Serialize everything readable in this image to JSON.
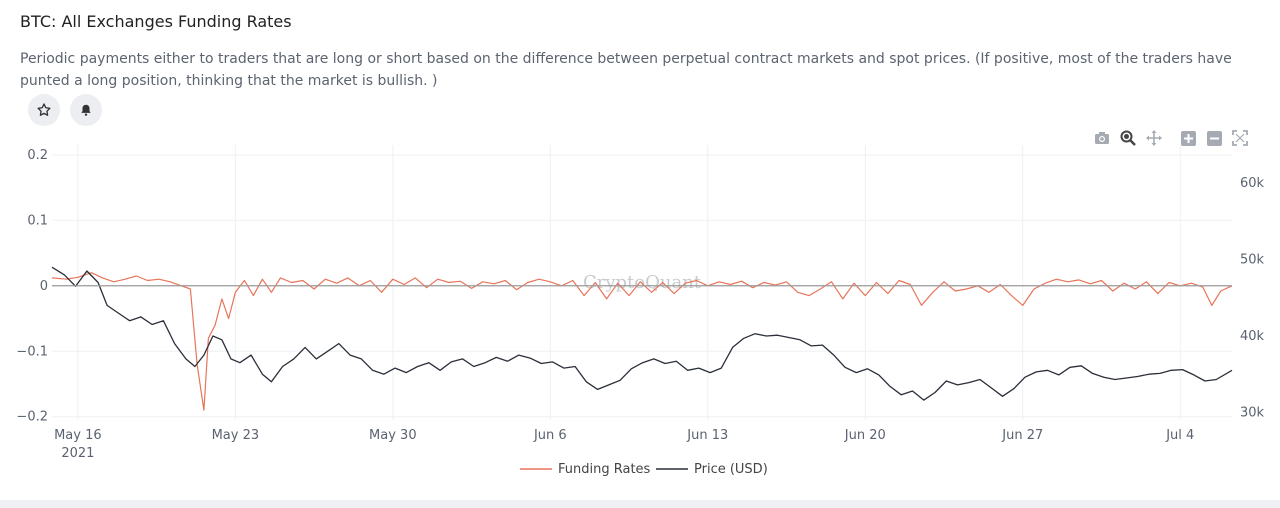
{
  "header": {
    "title": "BTC: All Exchanges Funding Rates",
    "description": "Periodic payments either to traders that are long or short based on the difference between perpetual contract markets and spot prices. (If positive, most of the traders have punted a long position, thinking that the market is bullish. )"
  },
  "actions": {
    "star_icon": "star-icon",
    "bell_icon": "bell-icon"
  },
  "modebar": [
    "camera-icon",
    "zoom-icon",
    "pan-icon",
    "zoom-in-icon",
    "zoom-out-icon",
    "autoscale-icon"
  ],
  "watermark": "CryptoQuant",
  "colors": {
    "funding": "#e8745a",
    "price": "#2b2f3a",
    "zero_line": "#9a9a9a",
    "grid": "#eef0f2"
  },
  "chart_data": {
    "type": "line",
    "title": "",
    "x_ticks": [
      {
        "day": 0,
        "label": "May 16",
        "sublabel": "2021"
      },
      {
        "day": 7,
        "label": "May 23"
      },
      {
        "day": 14,
        "label": "May 30"
      },
      {
        "day": 21,
        "label": "Jun 6"
      },
      {
        "day": 28,
        "label": "Jun 13"
      },
      {
        "day": 35,
        "label": "Jun 20"
      },
      {
        "day": 42,
        "label": "Jun 27"
      },
      {
        "day": 49,
        "label": "Jul 4"
      }
    ],
    "x_range_days": [
      -1.15,
      51.3
    ],
    "y_left": {
      "ticks": [
        0.2,
        0.1,
        0,
        -0.1,
        -0.2
      ],
      "tick_labels": [
        "0.2",
        "0.1",
        "0",
        "−0.1",
        "−0.2"
      ],
      "range": [
        -0.205,
        0.215
      ]
    },
    "y_right": {
      "ticks": [
        60000,
        50000,
        40000,
        30000
      ],
      "tick_labels": [
        "60k",
        "50k",
        "40k",
        "30k"
      ],
      "range": [
        29000,
        65000
      ]
    },
    "grid": true,
    "legend_position": "bottom-center",
    "series": [
      {
        "name": "Funding Rates",
        "axis": "left",
        "points": [
          [
            -1.15,
            0.012
          ],
          [
            -0.5,
            0.01
          ],
          [
            0,
            0.013
          ],
          [
            0.6,
            0.02
          ],
          [
            1.1,
            0.012
          ],
          [
            1.6,
            0.006
          ],
          [
            2.1,
            0.01
          ],
          [
            2.6,
            0.015
          ],
          [
            3.1,
            0.008
          ],
          [
            3.6,
            0.01
          ],
          [
            4.1,
            0.006
          ],
          [
            4.6,
            0.0
          ],
          [
            5.0,
            -0.005
          ],
          [
            5.3,
            -0.12
          ],
          [
            5.6,
            -0.19
          ],
          [
            5.8,
            -0.08
          ],
          [
            6.1,
            -0.06
          ],
          [
            6.4,
            -0.02
          ],
          [
            6.7,
            -0.05
          ],
          [
            7.0,
            -0.01
          ],
          [
            7.4,
            0.008
          ],
          [
            7.8,
            -0.015
          ],
          [
            8.2,
            0.01
          ],
          [
            8.6,
            -0.01
          ],
          [
            9.0,
            0.012
          ],
          [
            9.5,
            0.005
          ],
          [
            10.0,
            0.008
          ],
          [
            10.5,
            -0.005
          ],
          [
            11.0,
            0.01
          ],
          [
            11.5,
            0.004
          ],
          [
            12.0,
            0.012
          ],
          [
            12.5,
            0.0
          ],
          [
            13.0,
            0.008
          ],
          [
            13.5,
            -0.01
          ],
          [
            14.0,
            0.01
          ],
          [
            14.5,
            0.002
          ],
          [
            15.0,
            0.012
          ],
          [
            15.5,
            -0.003
          ],
          [
            16.0,
            0.01
          ],
          [
            16.5,
            0.005
          ],
          [
            17.0,
            0.007
          ],
          [
            17.5,
            -0.004
          ],
          [
            18.0,
            0.006
          ],
          [
            18.5,
            0.003
          ],
          [
            19.0,
            0.008
          ],
          [
            19.5,
            -0.006
          ],
          [
            20.0,
            0.005
          ],
          [
            20.5,
            0.01
          ],
          [
            21.0,
            0.006
          ],
          [
            21.5,
            0.0
          ],
          [
            22.0,
            0.008
          ],
          [
            22.5,
            -0.015
          ],
          [
            23.0,
            0.005
          ],
          [
            23.5,
            -0.02
          ],
          [
            24.0,
            0.004
          ],
          [
            24.5,
            -0.015
          ],
          [
            25.0,
            0.006
          ],
          [
            25.5,
            -0.01
          ],
          [
            26.0,
            0.005
          ],
          [
            26.5,
            -0.012
          ],
          [
            27.0,
            0.004
          ],
          [
            27.5,
            0.008
          ],
          [
            28.0,
            0.0
          ],
          [
            28.5,
            0.006
          ],
          [
            29.0,
            0.002
          ],
          [
            29.5,
            0.007
          ],
          [
            30.0,
            -0.003
          ],
          [
            30.5,
            0.005
          ],
          [
            31.0,
            0.001
          ],
          [
            31.5,
            0.006
          ],
          [
            32.0,
            -0.01
          ],
          [
            32.5,
            -0.015
          ],
          [
            33.0,
            -0.005
          ],
          [
            33.5,
            0.006
          ],
          [
            34.0,
            -0.02
          ],
          [
            34.5,
            0.004
          ],
          [
            35.0,
            -0.015
          ],
          [
            35.5,
            0.005
          ],
          [
            36.0,
            -0.012
          ],
          [
            36.5,
            0.008
          ],
          [
            37.0,
            0.002
          ],
          [
            37.5,
            -0.03
          ],
          [
            38.0,
            -0.01
          ],
          [
            38.5,
            0.006
          ],
          [
            39.0,
            -0.008
          ],
          [
            39.5,
            -0.005
          ],
          [
            40.0,
            0.0
          ],
          [
            40.5,
            -0.01
          ],
          [
            41.0,
            0.002
          ],
          [
            41.5,
            -0.015
          ],
          [
            42.0,
            -0.03
          ],
          [
            42.5,
            -0.005
          ],
          [
            43.0,
            0.004
          ],
          [
            43.5,
            0.01
          ],
          [
            44.0,
            0.006
          ],
          [
            44.5,
            0.009
          ],
          [
            45.0,
            0.003
          ],
          [
            45.5,
            0.008
          ],
          [
            46.0,
            -0.008
          ],
          [
            46.5,
            0.004
          ],
          [
            47.0,
            -0.005
          ],
          [
            47.5,
            0.006
          ],
          [
            48.0,
            -0.012
          ],
          [
            48.5,
            0.005
          ],
          [
            49.0,
            0.0
          ],
          [
            49.5,
            0.004
          ],
          [
            50.0,
            -0.002
          ],
          [
            50.4,
            -0.03
          ],
          [
            50.8,
            -0.008
          ],
          [
            51.3,
            0.0
          ]
        ]
      },
      {
        "name": "Price (USD)",
        "axis": "right",
        "points": [
          [
            -1.15,
            49000
          ],
          [
            -0.6,
            48000
          ],
          [
            -0.1,
            46500
          ],
          [
            0.4,
            48500
          ],
          [
            0.9,
            47000
          ],
          [
            1.3,
            44000
          ],
          [
            1.8,
            43000
          ],
          [
            2.3,
            42000
          ],
          [
            2.8,
            42500
          ],
          [
            3.3,
            41500
          ],
          [
            3.8,
            42000
          ],
          [
            4.3,
            39000
          ],
          [
            4.8,
            37000
          ],
          [
            5.2,
            36000
          ],
          [
            5.6,
            37500
          ],
          [
            6.0,
            40000
          ],
          [
            6.4,
            39500
          ],
          [
            6.8,
            37000
          ],
          [
            7.2,
            36500
          ],
          [
            7.7,
            37500
          ],
          [
            8.2,
            35000
          ],
          [
            8.6,
            34000
          ],
          [
            9.1,
            36000
          ],
          [
            9.6,
            37000
          ],
          [
            10.1,
            38500
          ],
          [
            10.6,
            37000
          ],
          [
            11.1,
            38000
          ],
          [
            11.6,
            39000
          ],
          [
            12.1,
            37500
          ],
          [
            12.6,
            37000
          ],
          [
            13.1,
            35500
          ],
          [
            13.6,
            35000
          ],
          [
            14.1,
            35800
          ],
          [
            14.6,
            35200
          ],
          [
            15.1,
            36000
          ],
          [
            15.6,
            36500
          ],
          [
            16.1,
            35500
          ],
          [
            16.6,
            36600
          ],
          [
            17.1,
            37000
          ],
          [
            17.6,
            36000
          ],
          [
            18.1,
            36500
          ],
          [
            18.6,
            37200
          ],
          [
            19.1,
            36700
          ],
          [
            19.6,
            37500
          ],
          [
            20.1,
            37100
          ],
          [
            20.6,
            36400
          ],
          [
            21.1,
            36600
          ],
          [
            21.6,
            35800
          ],
          [
            22.1,
            36000
          ],
          [
            22.6,
            34000
          ],
          [
            23.1,
            33000
          ],
          [
            23.6,
            33600
          ],
          [
            24.1,
            34200
          ],
          [
            24.6,
            35700
          ],
          [
            25.1,
            36500
          ],
          [
            25.6,
            37000
          ],
          [
            26.1,
            36400
          ],
          [
            26.6,
            36700
          ],
          [
            27.1,
            35500
          ],
          [
            27.6,
            35800
          ],
          [
            28.1,
            35200
          ],
          [
            28.6,
            35800
          ],
          [
            29.1,
            38500
          ],
          [
            29.6,
            39700
          ],
          [
            30.1,
            40300
          ],
          [
            30.6,
            40000
          ],
          [
            31.1,
            40100
          ],
          [
            31.6,
            39800
          ],
          [
            32.1,
            39500
          ],
          [
            32.6,
            38700
          ],
          [
            33.1,
            38800
          ],
          [
            33.6,
            37500
          ],
          [
            34.1,
            35900
          ],
          [
            34.6,
            35200
          ],
          [
            35.1,
            35700
          ],
          [
            35.6,
            34900
          ],
          [
            36.1,
            33400
          ],
          [
            36.6,
            32300
          ],
          [
            37.1,
            32800
          ],
          [
            37.6,
            31600
          ],
          [
            38.1,
            32600
          ],
          [
            38.6,
            34100
          ],
          [
            39.1,
            33600
          ],
          [
            39.6,
            33900
          ],
          [
            40.1,
            34300
          ],
          [
            40.6,
            33200
          ],
          [
            41.1,
            32100
          ],
          [
            41.6,
            33100
          ],
          [
            42.1,
            34600
          ],
          [
            42.6,
            35300
          ],
          [
            43.1,
            35500
          ],
          [
            43.6,
            34900
          ],
          [
            44.1,
            35900
          ],
          [
            44.6,
            36100
          ],
          [
            45.1,
            35100
          ],
          [
            45.6,
            34600
          ],
          [
            46.1,
            34300
          ],
          [
            46.6,
            34500
          ],
          [
            47.1,
            34700
          ],
          [
            47.6,
            35000
          ],
          [
            48.1,
            35100
          ],
          [
            48.6,
            35500
          ],
          [
            49.1,
            35600
          ],
          [
            49.6,
            34900
          ],
          [
            50.1,
            34100
          ],
          [
            50.6,
            34300
          ],
          [
            51.3,
            35500
          ]
        ]
      }
    ]
  }
}
